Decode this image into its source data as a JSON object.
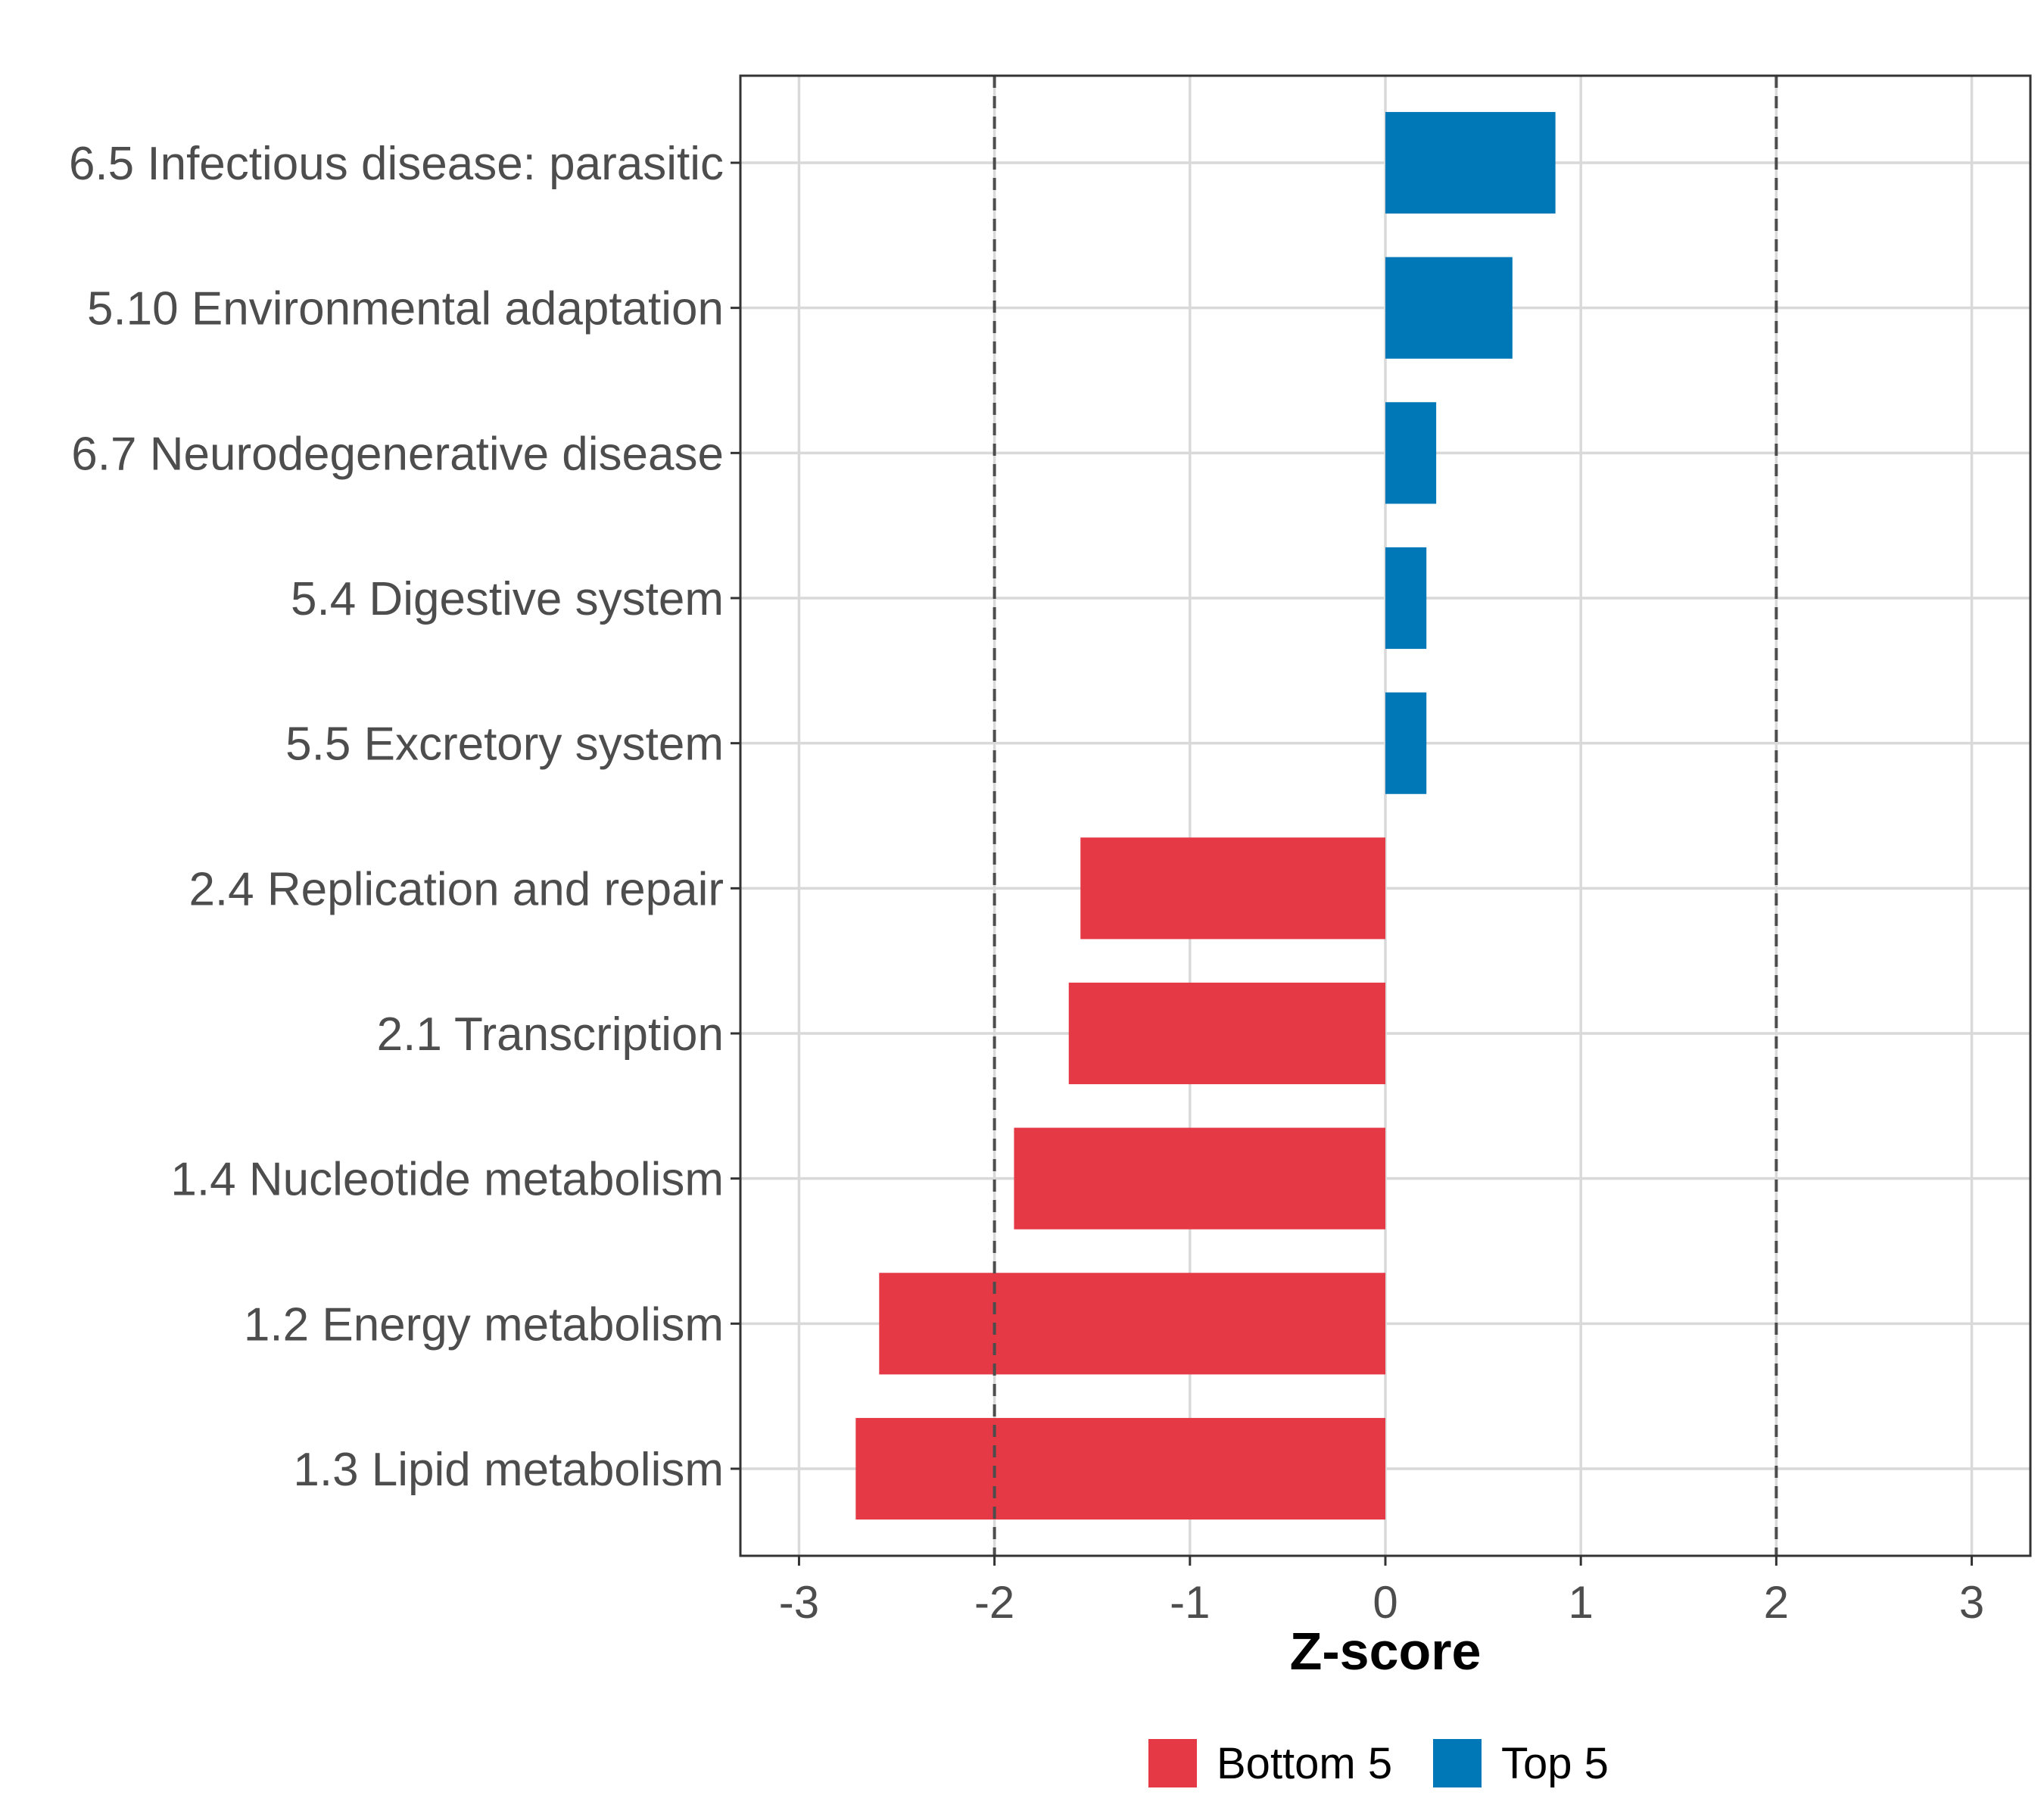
{
  "chart_data": {
    "type": "bar",
    "orientation": "horizontal",
    "title": "",
    "xlabel": "Z-score",
    "ylabel": "",
    "xlim": [
      -3.3,
      3.3
    ],
    "xticks": [
      -3,
      -2,
      -1,
      0,
      1,
      2,
      3
    ],
    "xtick_labels": [
      "-3",
      "-2",
      "-1",
      "0",
      "1",
      "2",
      "3"
    ],
    "reference_lines": [
      -2,
      2
    ],
    "grid": true,
    "legend_position": "bottom",
    "categories": [
      "6.5 Infectious disease: parasitic",
      "5.10 Environmental adaptation",
      "6.7 Neurodegenerative disease",
      "5.4 Digestive system",
      "5.5 Excretory system",
      "2.4 Replication and repair",
      "2.1 Transcription",
      "1.4 Nucleotide metabolism",
      "1.2 Energy metabolism",
      "1.3 Lipid metabolism"
    ],
    "values": [
      0.87,
      0.65,
      0.26,
      0.21,
      0.21,
      -1.56,
      -1.62,
      -1.9,
      -2.59,
      -2.71
    ],
    "groups": [
      "Top 5",
      "Top 5",
      "Top 5",
      "Top 5",
      "Top 5",
      "Bottom 5",
      "Bottom 5",
      "Bottom 5",
      "Bottom 5",
      "Bottom 5"
    ],
    "legend": [
      {
        "name": "Bottom 5",
        "color": "#E63946"
      },
      {
        "name": "Top 5",
        "color": "#0077B6"
      }
    ]
  }
}
